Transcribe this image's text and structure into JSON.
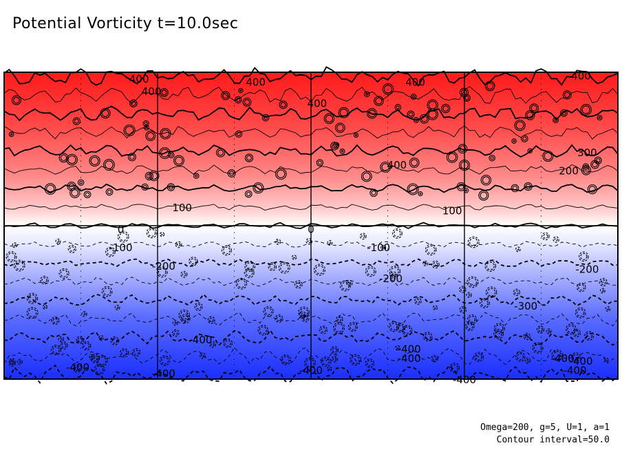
{
  "title": "Potential Vorticity t=10.0sec",
  "footer": {
    "params": "Omega=200, g=5, U=1, a=1",
    "interval": "Contour interval=50.0"
  },
  "colors": {
    "positive_max": "#ff1a1a",
    "zero": "#ffffff",
    "negative_max": "#1a2eff"
  },
  "chart_data": {
    "type": "heatmap",
    "title": "Potential Vorticity t=10.0sec",
    "xlabel": "",
    "ylabel": "",
    "value_range": [
      -400,
      400
    ],
    "contour_interval": 50.0,
    "negative_contours_dashed": true,
    "grid": true,
    "contour_labels": [
      {
        "text": "400",
        "x": 0.22,
        "y": 0.98
      },
      {
        "text": "400",
        "x": 0.24,
        "y": 0.94
      },
      {
        "text": "400",
        "x": 0.41,
        "y": 0.97
      },
      {
        "text": "400",
        "x": 0.51,
        "y": 0.9
      },
      {
        "text": "400",
        "x": 0.67,
        "y": 0.97
      },
      {
        "text": "400",
        "x": 0.94,
        "y": 0.99
      },
      {
        "text": "400",
        "x": 0.64,
        "y": 0.7
      },
      {
        "text": "300",
        "x": 0.95,
        "y": 0.74
      },
      {
        "text": "200",
        "x": 0.92,
        "y": 0.68
      },
      {
        "text": "100",
        "x": 0.29,
        "y": 0.56
      },
      {
        "text": "100",
        "x": 0.73,
        "y": 0.55
      },
      {
        "text": "0",
        "x": 0.19,
        "y": 0.49
      },
      {
        "text": "0",
        "x": 0.5,
        "y": 0.49
      },
      {
        "text": "-100",
        "x": 0.19,
        "y": 0.43
      },
      {
        "text": "-100",
        "x": 0.61,
        "y": 0.43
      },
      {
        "text": "-200",
        "x": 0.26,
        "y": 0.37
      },
      {
        "text": "-200",
        "x": 0.63,
        "y": 0.33
      },
      {
        "text": "-200",
        "x": 0.95,
        "y": 0.36
      },
      {
        "text": "-300",
        "x": 0.85,
        "y": 0.24
      },
      {
        "text": "-400",
        "x": 0.32,
        "y": 0.13
      },
      {
        "text": "-400",
        "x": 0.66,
        "y": 0.1
      },
      {
        "text": "-400",
        "x": 0.66,
        "y": 0.07
      },
      {
        "text": "-400",
        "x": 0.91,
        "y": 0.07
      },
      {
        "text": "-400",
        "x": 0.94,
        "y": 0.06
      },
      {
        "text": "-400",
        "x": 0.12,
        "y": 0.04
      },
      {
        "text": "-400",
        "x": 0.26,
        "y": 0.02
      },
      {
        "text": "-400",
        "x": 0.5,
        "y": 0.03
      },
      {
        "text": "-400",
        "x": 0.75,
        "y": 0.0
      },
      {
        "text": "-400",
        "x": 0.93,
        "y": 0.03
      }
    ]
  }
}
